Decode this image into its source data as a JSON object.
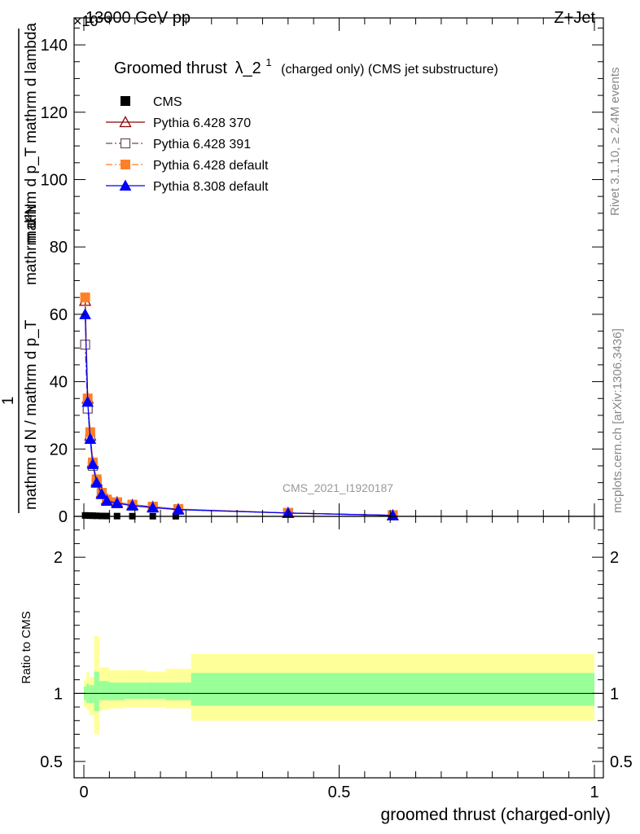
{
  "header": {
    "left": "13000 GeV pp",
    "right": "Z+Jet",
    "exponent": "×10^-3"
  },
  "side_labels": {
    "rivet": "Rivet 3.1.10, ≥ 2.4M events",
    "mcplots": "mcplots.cern.ch [arXiv:1306.3436]"
  },
  "watermark": "CMS_2021_I1920187",
  "chart_data": [
    {
      "type": "line",
      "panel": "main",
      "title": "Groomed thrust λ_2^1 (charged only) (CMS jet substructure)",
      "title_main": "Groomed thrust",
      "title_lambda": "λ_2",
      "title_sup": "1",
      "title_tail": "(charged only) (CMS jet substructure)",
      "ylabel_numerator": "1",
      "ylabel_numerator_frac": "mathrm d²N",
      "ylabel_denominator": "mathrm d N / mathrm d p_T mathrm d p_T mathrm d lambda",
      "ylabel_lines": [
        "mathrm d²N",
        "mathrm d p_T mathrm d lambda",
        "1",
        "mathrm d N / mathrm d p_T"
      ],
      "y_scale_note": "×10⁻³",
      "xlim": [
        0,
        1
      ],
      "ylim": [
        0,
        148
      ],
      "yticks": [
        0,
        20,
        40,
        60,
        80,
        100,
        120,
        140
      ],
      "ytick_labels": [
        "0",
        "20",
        "40",
        "60",
        "80",
        "100",
        "120",
        "140"
      ],
      "legend_position": "top-left",
      "legend": [
        "CMS",
        "Pythia 6.428 370",
        "Pythia 6.428 391",
        "Pythia 6.428 default",
        "Pythia 8.308 default"
      ],
      "series": [
        {
          "name": "CMS",
          "color": "#000000",
          "marker": "square-filled",
          "x": [
            0.0025,
            0.0075,
            0.0125,
            0.0175,
            0.025,
            0.035,
            0.045,
            0.065,
            0.095,
            0.135,
            0.18,
            0.605
          ],
          "y": [
            0.28,
            0.25,
            0.22,
            0.2,
            0.16,
            0.12,
            0.1,
            0.08,
            0.06,
            0.05,
            0.04,
            0.004
          ]
        },
        {
          "name": "Pythia 6.428 370",
          "color": "#8b0000",
          "marker": "triangle-open",
          "dash": "solid",
          "x": [
            0.0,
            0.0025,
            0.0075,
            0.0125,
            0.0175,
            0.025,
            0.035,
            0.045,
            0.065,
            0.095,
            0.135,
            0.185,
            0.4,
            0.605
          ],
          "y": [
            65,
            64,
            35,
            24,
            16,
            10.5,
            7,
            5,
            4.2,
            3.4,
            2.8,
            2.1,
            1.0,
            0.3
          ]
        },
        {
          "name": "Pythia 6.428 391",
          "color": "#6b4c5a",
          "marker": "square-open",
          "dash": "dash-dot",
          "x": [
            0.0,
            0.0025,
            0.0075,
            0.0125,
            0.0175,
            0.025,
            0.035,
            0.045,
            0.065,
            0.095,
            0.135,
            0.185,
            0.4,
            0.605
          ],
          "y": [
            51,
            51,
            32,
            23,
            15,
            10,
            6.8,
            4.8,
            4.0,
            3.2,
            2.7,
            2.0,
            1.0,
            0.3
          ]
        },
        {
          "name": "Pythia 6.428 default",
          "color": "#ff7f27",
          "marker": "square-filled",
          "dash": "dash-dot",
          "x": [
            0.0,
            0.0025,
            0.0075,
            0.0125,
            0.0175,
            0.025,
            0.035,
            0.045,
            0.065,
            0.095,
            0.135,
            0.185,
            0.4,
            0.605
          ],
          "y": [
            65,
            65,
            35,
            25,
            16,
            11,
            7,
            5,
            4.2,
            3.5,
            2.9,
            2.2,
            1.0,
            0.3
          ]
        },
        {
          "name": "Pythia 8.308 default",
          "color": "#0000ff",
          "marker": "triangle-filled",
          "dash": "solid",
          "x": [
            0.0,
            0.0025,
            0.0075,
            0.0125,
            0.0175,
            0.025,
            0.035,
            0.045,
            0.065,
            0.095,
            0.135,
            0.185,
            0.4,
            0.605
          ],
          "y": [
            60,
            60,
            34,
            23,
            15.5,
            10,
            6.6,
            4.6,
            3.9,
            3.2,
            2.6,
            2.0,
            1.0,
            0.3
          ]
        }
      ]
    },
    {
      "type": "area",
      "panel": "ratio",
      "ylabel": "Ratio to CMS",
      "xlabel": "groomed thrust (charged-only)",
      "xlim": [
        0,
        1
      ],
      "ylim": [
        0.38,
        2.3
      ],
      "yticks": [
        0.5,
        1,
        2
      ],
      "ytick_labels": [
        "0.5",
        "1",
        "2"
      ],
      "xticks": [
        0,
        0.5,
        1
      ],
      "xtick_labels": [
        "0",
        "0.5",
        "1"
      ],
      "reference_line": 1,
      "bands": [
        {
          "name": "outer uncertainty",
          "color": "#ffff99",
          "edges": [
            0,
            0.005,
            0.01,
            0.02,
            0.03,
            0.05,
            0.08,
            0.12,
            0.16,
            0.21,
            1.0
          ],
          "low": [
            0.9,
            0.88,
            0.84,
            0.7,
            0.88,
            0.89,
            0.9,
            0.9,
            0.89,
            0.8
          ],
          "high": [
            1.1,
            1.16,
            1.12,
            1.42,
            1.19,
            1.17,
            1.17,
            1.16,
            1.18,
            1.29
          ]
        },
        {
          "name": "inner uncertainty",
          "color": "#99ff99",
          "edges": [
            0,
            0.005,
            0.01,
            0.02,
            0.03,
            0.05,
            0.08,
            0.12,
            0.16,
            0.21,
            1.0
          ],
          "low": [
            0.95,
            0.93,
            0.93,
            0.87,
            0.95,
            0.95,
            0.96,
            0.96,
            0.95,
            0.91
          ],
          "high": [
            1.05,
            1.07,
            1.06,
            1.16,
            1.09,
            1.08,
            1.08,
            1.08,
            1.08,
            1.15
          ]
        }
      ]
    }
  ]
}
